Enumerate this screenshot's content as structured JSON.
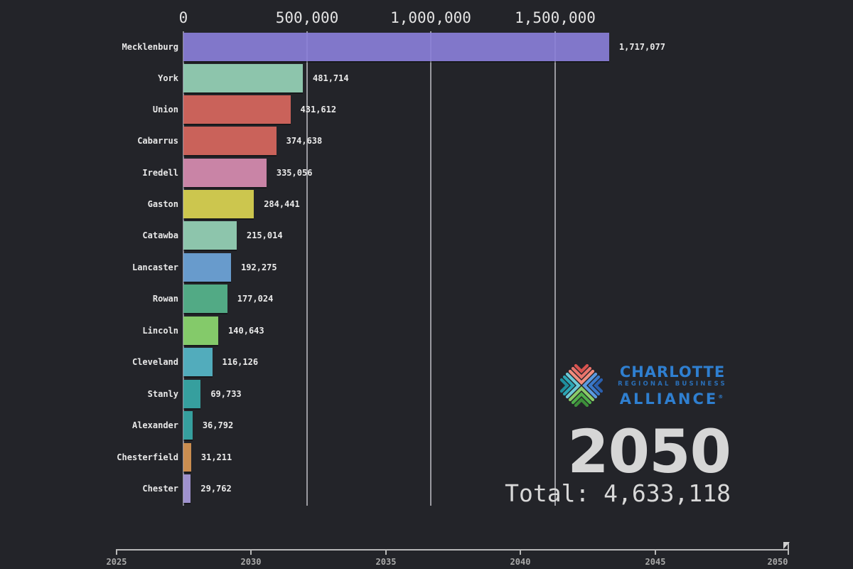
{
  "chart_data": {
    "type": "bar",
    "orientation": "horizontal",
    "title": "",
    "xlabel": "",
    "ylabel": "",
    "xlim": [
      0,
      1750000
    ],
    "grid": true,
    "x_ticks": [
      "0",
      "500,000",
      "1,000,000",
      "1,500,000"
    ],
    "categories": [
      "Mecklenburg",
      "York",
      "Union",
      "Cabarrus",
      "Iredell",
      "Gaston",
      "Catawba",
      "Lancaster",
      "Rowan",
      "Lincoln",
      "Cleveland",
      "Stanly",
      "Alexander",
      "Chesterfield",
      "Chester"
    ],
    "values": [
      1717077,
      481714,
      431612,
      374638,
      335056,
      284441,
      215014,
      192275,
      177024,
      140643,
      116126,
      69733,
      36792,
      31211,
      29762
    ],
    "value_labels": [
      "1,717,077",
      "481,714",
      "431,612",
      "374,638",
      "335,056",
      "284,441",
      "215,014",
      "192,275",
      "177,024",
      "140,643",
      "116,126",
      "69,733",
      "36,792",
      "31,211",
      "29,762"
    ],
    "colors": [
      "#8a7fd8",
      "#97d3b8",
      "#d9685f",
      "#d9685f",
      "#d88db1",
      "#dbd452",
      "#97d3b8",
      "#6ea6da",
      "#57b68d",
      "#8dd970",
      "#56b8c9",
      "#38aaa8",
      "#38aaa8",
      "#d99654",
      "#a99bdb"
    ],
    "annotations": {
      "year": "2050",
      "total": "Total: 4,633,118"
    },
    "timeline": {
      "ticks": [
        "2025",
        "2030",
        "2035",
        "2040",
        "2045",
        "2050"
      ],
      "current": "2050"
    }
  },
  "axis": {
    "ticks": [
      {
        "label": "0",
        "value": 0
      },
      {
        "label": "500,000",
        "value": 500000
      },
      {
        "label": "1,000,000",
        "value": 1000000
      },
      {
        "label": "1,500,000",
        "value": 1500000
      }
    ]
  },
  "rows": [
    {
      "name": "Mecklenburg",
      "value": 1717077,
      "label": "1,717,077",
      "color": "#8a7fd8"
    },
    {
      "name": "York",
      "value": 481714,
      "label": "481,714",
      "color": "#97d3b8"
    },
    {
      "name": "Union",
      "value": 431612,
      "label": "431,612",
      "color": "#d9685f"
    },
    {
      "name": "Cabarrus",
      "value": 374638,
      "label": "374,638",
      "color": "#d9685f"
    },
    {
      "name": "Iredell",
      "value": 335056,
      "label": "335,056",
      "color": "#d88db1"
    },
    {
      "name": "Gaston",
      "value": 284441,
      "label": "284,441",
      "color": "#dbd452"
    },
    {
      "name": "Catawba",
      "value": 215014,
      "label": "215,014",
      "color": "#97d3b8"
    },
    {
      "name": "Lancaster",
      "value": 192275,
      "label": "192,275",
      "color": "#6ea6da"
    },
    {
      "name": "Rowan",
      "value": 177024,
      "label": "177,024",
      "color": "#57b68d"
    },
    {
      "name": "Lincoln",
      "value": 140643,
      "label": "140,643",
      "color": "#8dd970"
    },
    {
      "name": "Cleveland",
      "value": 116126,
      "label": "116,126",
      "color": "#56b8c9"
    },
    {
      "name": "Stanly",
      "value": 69733,
      "label": "69,733",
      "color": "#38aaa8"
    },
    {
      "name": "Alexander",
      "value": 36792,
      "label": "36,792",
      "color": "#38aaa8"
    },
    {
      "name": "Chesterfield",
      "value": 31211,
      "label": "31,211",
      "color": "#d99654"
    },
    {
      "name": "Chester",
      "value": 29762,
      "label": "29,762",
      "color": "#a99bdb"
    }
  ],
  "logo": {
    "line1": "CHARLOTTE",
    "line2": "REGIONAL BUSINESS",
    "line3": "ALLIANCE",
    "registered": "®",
    "icon": "crba-logo-mark-icon"
  },
  "year_display": "2050",
  "total_display": "Total: 4,633,118",
  "timeline": {
    "ticks": [
      "2025",
      "2030",
      "2035",
      "2040",
      "2045",
      "2050"
    ],
    "handle_icon": "timeline-flag-icon"
  },
  "colors": {
    "background": "#232429",
    "text": "#e6e6e6",
    "gridline": "#9a9aa0",
    "logo_blue": "#2f7fd0"
  }
}
